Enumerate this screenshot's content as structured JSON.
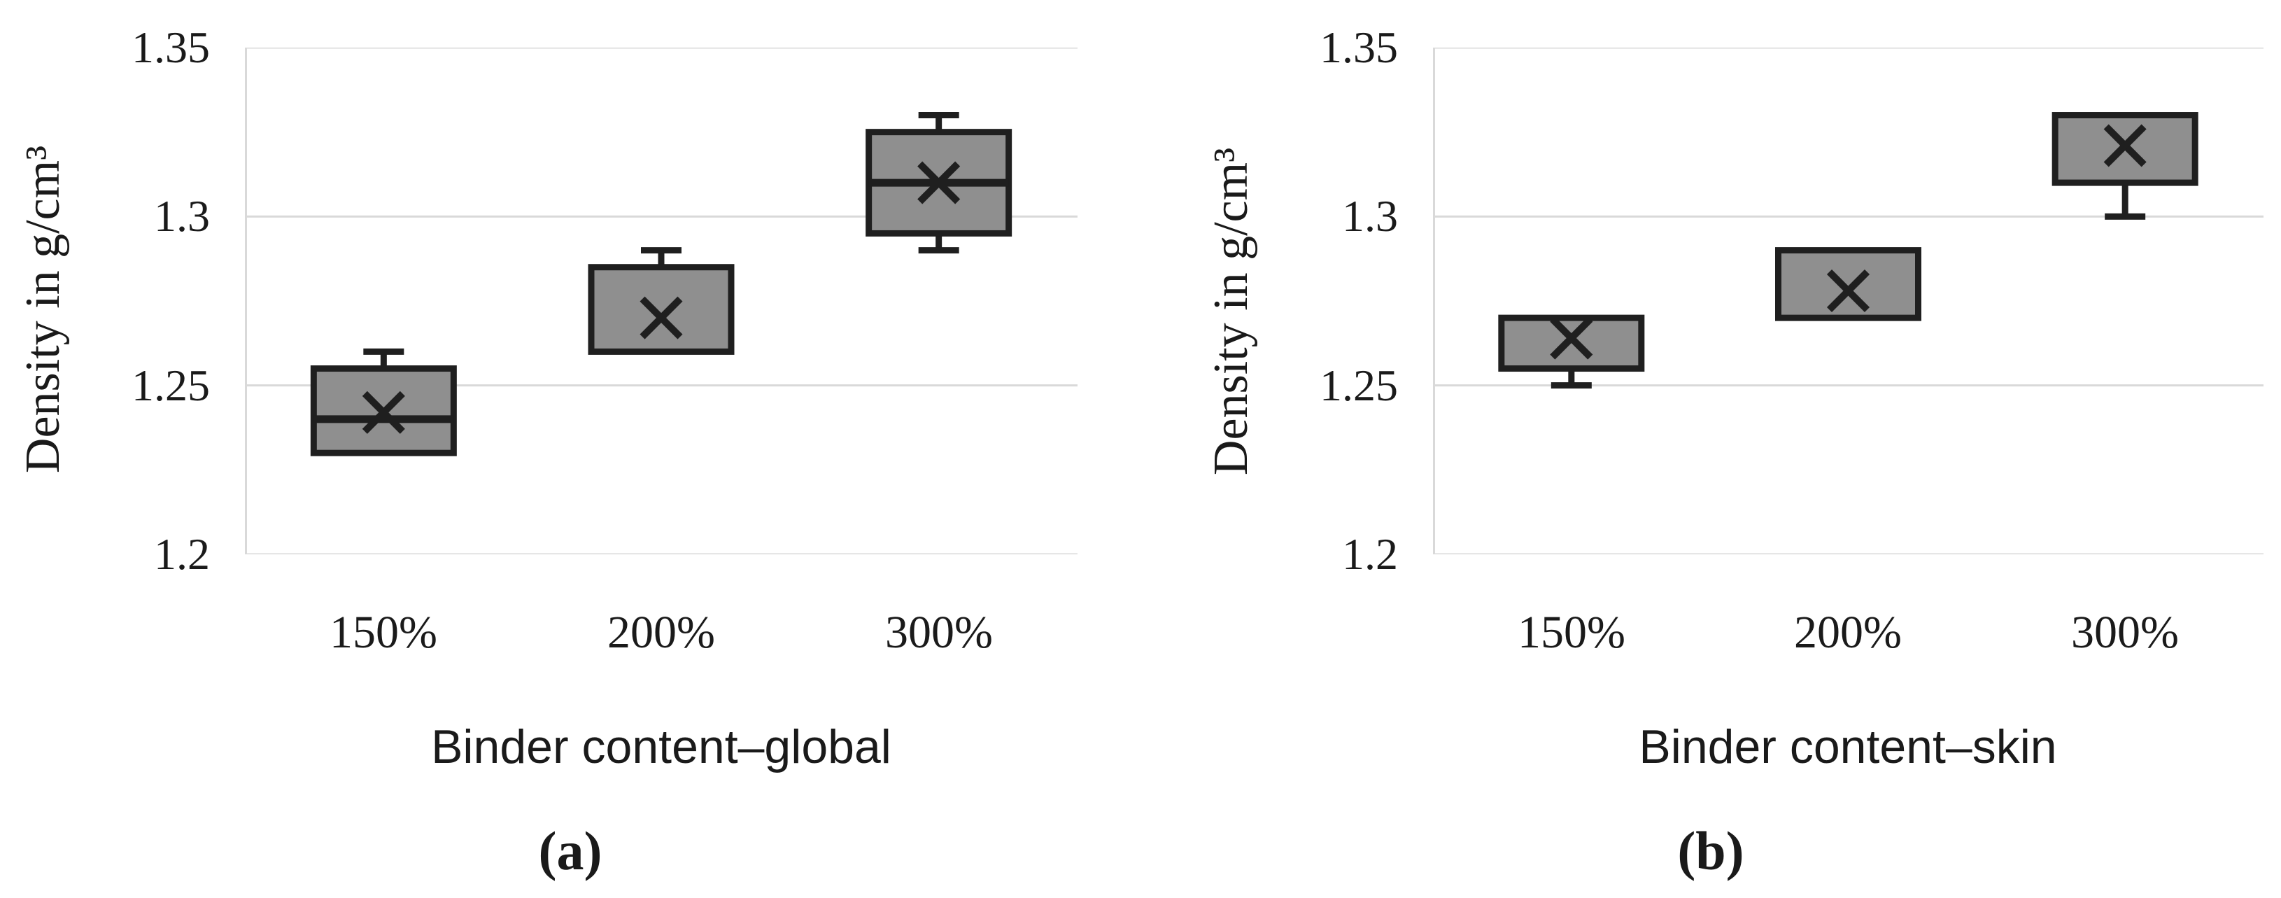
{
  "figure": {
    "description": "Two box-and-whisker charts of specimen density versus binder content",
    "colors": {
      "box_fill": "#8f8f8f",
      "box_stroke": "#1f1f1f",
      "marker_stroke": "#1f1f1f",
      "gridline": "#d9d9d9",
      "background": "#ffffff",
      "text": "#1a1a1a"
    }
  },
  "chart_data": [
    {
      "type": "box",
      "panel": "a",
      "caption": "(a)",
      "xlabel": "Binder content–global",
      "ylabel": "Density in g/cm³",
      "ylim": [
        1.2,
        1.35
      ],
      "yticks": [
        1.35,
        1.3,
        1.25,
        1.2
      ],
      "ytick_labels": [
        "1.35",
        "1.3",
        "1.25",
        "1.2"
      ],
      "categories": [
        "150%",
        "200%",
        "300%"
      ],
      "grid": true,
      "legend": false,
      "boxes": [
        {
          "category": "150%",
          "q1": 1.23,
          "q3": 1.255,
          "median": 1.24,
          "mean": 1.242,
          "whisker_low": null,
          "whisker_high": 1.26
        },
        {
          "category": "200%",
          "q1": 1.26,
          "q3": 1.285,
          "median": null,
          "mean": 1.27,
          "whisker_low": null,
          "whisker_high": 1.29
        },
        {
          "category": "300%",
          "q1": 1.295,
          "q3": 1.325,
          "median": 1.31,
          "mean": 1.31,
          "whisker_low": 1.29,
          "whisker_high": 1.33
        }
      ]
    },
    {
      "type": "box",
      "panel": "b",
      "caption": "(b)",
      "xlabel": "Binder content–skin",
      "ylabel": "Density in g/cm³",
      "ylim": [
        1.2,
        1.35
      ],
      "yticks": [
        1.35,
        1.3,
        1.25,
        1.2
      ],
      "ytick_labels": [
        "1.35",
        "1.3",
        "1.25",
        "1.2"
      ],
      "categories": [
        "150%",
        "200%",
        "300%"
      ],
      "grid": true,
      "legend": false,
      "boxes": [
        {
          "category": "150%",
          "q1": 1.255,
          "q3": 1.27,
          "median": null,
          "mean": 1.264,
          "whisker_low": 1.25,
          "whisker_high": null
        },
        {
          "category": "200%",
          "q1": 1.27,
          "q3": 1.29,
          "median": null,
          "mean": 1.278,
          "whisker_low": null,
          "whisker_high": null
        },
        {
          "category": "300%",
          "q1": 1.31,
          "q3": 1.33,
          "median": null,
          "mean": 1.321,
          "whisker_low": 1.3,
          "whisker_high": null
        }
      ]
    }
  ]
}
